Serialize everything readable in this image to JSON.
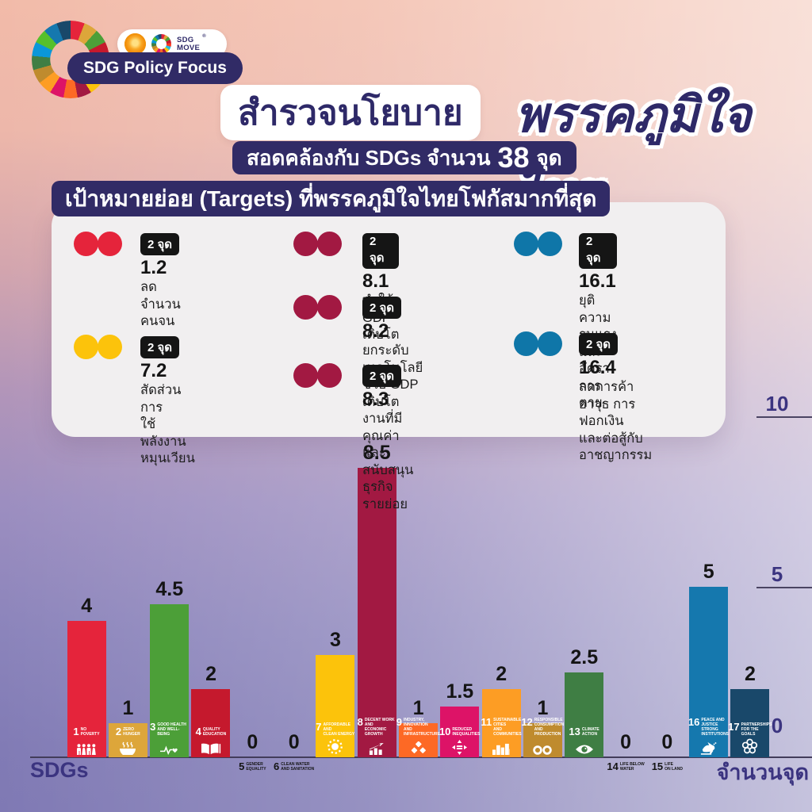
{
  "header": {
    "brand_label": "SDG Policy Focus",
    "sdg_move_label": "SDG\nMOVE",
    "registered_mark": "®",
    "icons": [
      "sdg-wheel-icon",
      "thai-emblem-icon",
      "sdg-move-wheel-icon"
    ]
  },
  "title": {
    "survey_label": "สำรวจนโยบาย",
    "party_name": "พรรคภูมิใจไทย",
    "subtitle_prefix": "สอดคล้องกับ SDGs จำนวน",
    "subtitle_count": "38",
    "subtitle_unit": "จุด"
  },
  "targets_panel": {
    "heading": "เป้าหมายย่อย (Targets) ที่พรรคภูมิใจไทยโฟกัสมากที่สุด",
    "items": [
      {
        "code": "1.2",
        "badge": "2 จุด",
        "desc": "ลดจำนวนคนจน",
        "color": "#E5243B",
        "column": 0,
        "row": 0
      },
      {
        "code": "7.2",
        "badge": "2 จุด",
        "desc": "สัดส่วนการ\nใช้พลังงานหมุนเวียน",
        "color": "#FCC30B",
        "column": 0,
        "row": 1
      },
      {
        "code": "8.1",
        "badge": "2 จุด",
        "desc": "ทำให้ GDP เติบโต",
        "color": "#A21942",
        "column": 1,
        "row": 0
      },
      {
        "code": "8.2",
        "badge": "2 จุด",
        "desc": "ยกระดับเทคโนโลยี\nช่วย GDP เติบโต",
        "color": "#A21942",
        "column": 1,
        "row": 1
      },
      {
        "code": "8.3",
        "badge": "2 จุด",
        "desc": "งานที่มีคุณค่าและ\nสนับสนุนธุรกิจรายย่อย",
        "color": "#A21942",
        "column": 1,
        "row": 2
      },
      {
        "code": "16.1",
        "badge": "2 จุด",
        "desc": "ยุติความรุนแรง\nและอัตราการตาย",
        "color": "#0F76A8",
        "column": 2,
        "row": 0
      },
      {
        "code": "16.4",
        "badge": "2 จุด",
        "desc": "ลดการค้าอาวุธ การฟอกเงิน\nและต่อสู้กับอาชญากรรม",
        "color": "#0F76A8",
        "column": 2,
        "row": 1
      }
    ]
  },
  "chart_data": {
    "type": "bar",
    "title": "",
    "x_axis_label": "SDGs",
    "y_axis_label": "จำนวนจุด",
    "ylim": [
      0,
      10
    ],
    "y_ticks": [
      0,
      5,
      10
    ],
    "grid": false,
    "legend": "none",
    "values": [
      4,
      1,
      4.5,
      2,
      0,
      0,
      3,
      8.5,
      1,
      1.5,
      2,
      1,
      2.5,
      0,
      0,
      5,
      2
    ],
    "categories": [
      {
        "goal": 1,
        "name": "NO\nPOVERTY",
        "color": "#E5243B",
        "icon": "people-icon"
      },
      {
        "goal": 2,
        "name": "ZERO\nHUNGER",
        "color": "#DDA63A",
        "icon": "bowl-icon"
      },
      {
        "goal": 3,
        "name": "GOOD HEALTH\nAND WELL-BEING",
        "color": "#4C9F38",
        "icon": "heartbeat-icon"
      },
      {
        "goal": 4,
        "name": "QUALITY\nEDUCATION",
        "color": "#C5192D",
        "icon": "book-icon"
      },
      {
        "goal": 5,
        "name": "GENDER\nEQUALITY",
        "color": "#FF3A21",
        "icon": "gender-icon"
      },
      {
        "goal": 6,
        "name": "CLEAN WATER\nAND SANITATION",
        "color": "#26BDE2",
        "icon": "water-icon"
      },
      {
        "goal": 7,
        "name": "AFFORDABLE AND\nCLEAN ENERGY",
        "color": "#FCC30B",
        "icon": "sun-icon"
      },
      {
        "goal": 8,
        "name": "DECENT WORK AND\nECONOMIC GROWTH",
        "color": "#A21942",
        "icon": "growth-icon"
      },
      {
        "goal": 9,
        "name": "INDUSTRY, INNOVATION\nAND INFRASTRUCTURE",
        "color": "#FD6925",
        "icon": "cubes-icon"
      },
      {
        "goal": 10,
        "name": "REDUCED\nINEQUALITIES",
        "color": "#DD1367",
        "icon": "equal-arrows-icon"
      },
      {
        "goal": 11,
        "name": "SUSTAINABLE CITIES\nAND COMMUNITIES",
        "color": "#FD9D24",
        "icon": "city-icon"
      },
      {
        "goal": 12,
        "name": "RESPONSIBLE\nCONSUMPTION\nAND PRODUCTION",
        "color": "#BF8B2E",
        "icon": "infinity-icon"
      },
      {
        "goal": 13,
        "name": "CLIMATE\nACTION",
        "color": "#3F7E44",
        "icon": "eye-icon"
      },
      {
        "goal": 14,
        "name": "LIFE BELOW\nWATER",
        "color": "#0A97D9",
        "icon": "fish-icon"
      },
      {
        "goal": 15,
        "name": "LIFE\nON LAND",
        "color": "#56C02B",
        "icon": "tree-icon"
      },
      {
        "goal": 16,
        "name": "PEACE AND JUSTICE\nSTRONG INSTITUTIONS",
        "color": "#1578AE",
        "icon": "dove-icon"
      },
      {
        "goal": 17,
        "name": "PARTNERSHIPS\nFOR THE GOALS",
        "color": "#19486A",
        "icon": "rings-icon"
      }
    ]
  }
}
